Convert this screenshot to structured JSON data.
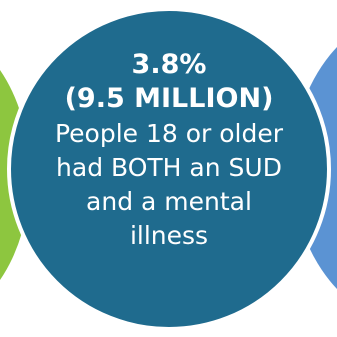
{
  "colors": {
    "left_circle": "#8dc63f",
    "center_circle": "#1f6b8e",
    "right_circle": "#5b93d3",
    "text": "#ffffff"
  },
  "stat": {
    "percent": "3.8%",
    "count": "(9.5 MILLION)"
  },
  "description": {
    "line1": "People 18 or older",
    "line2": "had BOTH an SUD",
    "line3": "and a mental",
    "line4": "illness"
  }
}
